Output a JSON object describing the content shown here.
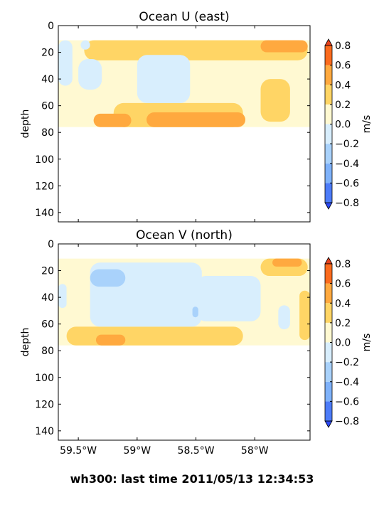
{
  "footer": "wh300: last time 2011/05/13 12:34:53",
  "colors": {
    "neg_08": "#2b48f4",
    "neg_06": "#4d7cf8",
    "neg_04": "#7fb2fa",
    "neg_02": "#a9d2fb",
    "neg_00": "#d8eefd",
    "pos_00": "#fff9d2",
    "pos_02": "#ffd565",
    "pos_04": "#ffa93f",
    "pos_06": "#fb6b1e",
    "pos_08": "#e8411c"
  },
  "chart_data": [
    {
      "type": "contour",
      "title": "Ocean U (east)",
      "ylabel": "depth",
      "xlim": [
        -59.67,
        -57.53
      ],
      "ylim": [
        147,
        0
      ],
      "x_tick_labels": [
        "59.5°W",
        "59°W",
        "58.5°W",
        "58°W"
      ],
      "y_ticks": [
        0,
        20,
        40,
        60,
        80,
        100,
        120,
        140
      ],
      "data_extent": {
        "x": [
          -59.67,
          -57.53
        ],
        "depth": [
          11,
          76
        ]
      },
      "colorbar": {
        "label": "m/s",
        "levels": [
          -0.8,
          -0.6,
          -0.4,
          -0.2,
          0.0,
          0.2,
          0.4,
          0.6,
          0.8
        ],
        "tick_labels": [
          "−0.8",
          "−0.6",
          "−0.4",
          "−0.2",
          "0.0",
          "0.2",
          "0.4",
          "0.6",
          "0.8"
        ]
      },
      "regions": [
        {
          "level": "pos_00",
          "x": [
            -59.67,
            -57.53
          ],
          "depth": [
            11,
            76
          ]
        },
        {
          "level": "pos_02",
          "x": [
            -59.45,
            -57.55
          ],
          "depth": [
            11,
            26
          ]
        },
        {
          "level": "pos_02",
          "x": [
            -59.2,
            -58.1
          ],
          "depth": [
            58,
            76
          ]
        },
        {
          "level": "pos_02",
          "x": [
            -57.95,
            -57.7
          ],
          "depth": [
            40,
            72
          ]
        },
        {
          "level": "pos_04",
          "x": [
            -58.92,
            -58.08
          ],
          "depth": [
            65,
            76
          ]
        },
        {
          "level": "pos_04",
          "x": [
            -59.37,
            -59.05
          ],
          "depth": [
            66,
            76
          ]
        },
        {
          "level": "pos_04",
          "x": [
            -57.95,
            -57.55
          ],
          "depth": [
            11,
            20
          ]
        },
        {
          "level": "neg_00",
          "x": [
            -59.67,
            -59.55
          ],
          "depth": [
            11,
            45
          ]
        },
        {
          "level": "neg_00",
          "x": [
            -59.5,
            -59.3
          ],
          "depth": [
            25,
            48
          ]
        },
        {
          "level": "neg_00",
          "x": [
            -59.0,
            -58.55
          ],
          "depth": [
            22,
            58
          ]
        },
        {
          "level": "neg_00",
          "x": [
            -59.48,
            -59.4
          ],
          "depth": [
            11,
            18
          ]
        }
      ]
    },
    {
      "type": "contour",
      "title": "Ocean V (north)",
      "ylabel": "depth",
      "xlim": [
        -59.67,
        -57.53
      ],
      "ylim": [
        147,
        0
      ],
      "x_tick_labels": [
        "59.5°W",
        "59°W",
        "58.5°W",
        "58°W"
      ],
      "y_ticks": [
        0,
        20,
        40,
        60,
        80,
        100,
        120,
        140
      ],
      "data_extent": {
        "x": [
          -59.67,
          -57.53
        ],
        "depth": [
          11,
          76
        ]
      },
      "colorbar": {
        "label": "m/s",
        "levels": [
          -0.8,
          -0.6,
          -0.4,
          -0.2,
          0.0,
          0.2,
          0.4,
          0.6,
          0.8
        ],
        "tick_labels": [
          "−0.8",
          "−0.6",
          "−0.4",
          "−0.2",
          "0.0",
          "0.2",
          "0.4",
          "0.6",
          "0.8"
        ]
      },
      "regions": [
        {
          "level": "pos_00",
          "x": [
            -59.67,
            -57.53
          ],
          "depth": [
            11,
            76
          ]
        },
        {
          "level": "pos_02",
          "x": [
            -59.6,
            -58.1
          ],
          "depth": [
            62,
            76
          ]
        },
        {
          "level": "pos_02",
          "x": [
            -57.95,
            -57.55
          ],
          "depth": [
            11,
            24
          ]
        },
        {
          "level": "pos_02",
          "x": [
            -57.62,
            -57.53
          ],
          "depth": [
            35,
            72
          ]
        },
        {
          "level": "pos_04",
          "x": [
            -59.35,
            -59.1
          ],
          "depth": [
            68,
            76
          ]
        },
        {
          "level": "pos_04",
          "x": [
            -57.85,
            -57.6
          ],
          "depth": [
            11,
            17
          ]
        },
        {
          "level": "neg_00",
          "x": [
            -59.4,
            -58.45
          ],
          "depth": [
            14,
            62
          ]
        },
        {
          "level": "neg_00",
          "x": [
            -58.5,
            -57.95
          ],
          "depth": [
            24,
            58
          ]
        },
        {
          "level": "neg_00",
          "x": [
            -59.67,
            -59.6
          ],
          "depth": [
            30,
            48
          ]
        },
        {
          "level": "neg_00",
          "x": [
            -57.8,
            -57.7
          ],
          "depth": [
            46,
            64
          ]
        },
        {
          "level": "neg_02",
          "x": [
            -59.4,
            -59.1
          ],
          "depth": [
            19,
            32
          ]
        },
        {
          "level": "neg_02",
          "x": [
            -58.53,
            -58.48
          ],
          "depth": [
            47,
            55
          ]
        }
      ]
    }
  ]
}
